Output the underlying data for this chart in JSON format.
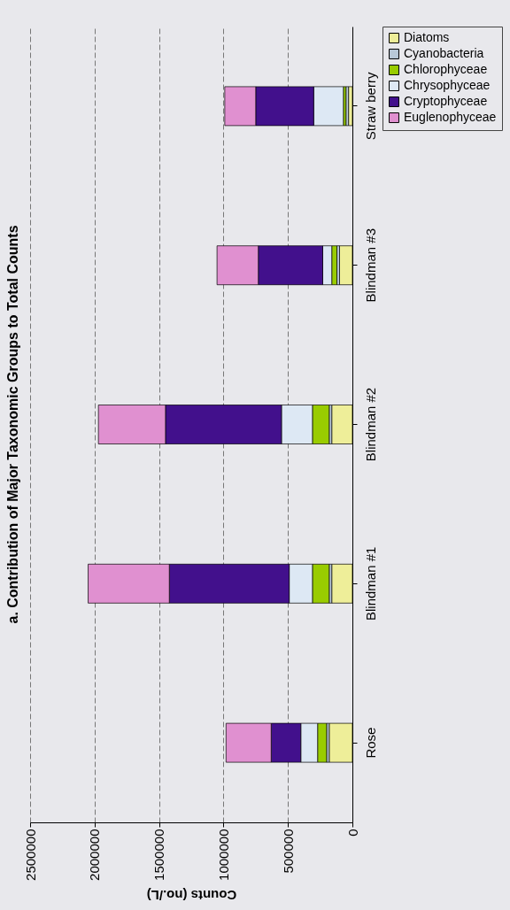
{
  "chart_data": {
    "type": "bar",
    "title": "a. Contribution of Major Taxonomic Groups to Total Counts",
    "xlabel": "Counts (no./L)",
    "orientation": "horizontal",
    "categories": [
      "Straw berry",
      "Blindman #3",
      "Blindman #2",
      "Blindman #1",
      "Rose"
    ],
    "stacked": true,
    "series": [
      {
        "name": "Diatoms",
        "color": "#eeee99",
        "values": [
          30000,
          100000,
          160000,
          160000,
          180000
        ]
      },
      {
        "name": "Cyanobacteria",
        "color": "#b8c8d8",
        "values": [
          20000,
          20000,
          20000,
          20000,
          20000
        ]
      },
      {
        "name": "Chlorophyceae",
        "color": "#99cc00",
        "values": [
          20000,
          40000,
          130000,
          130000,
          70000
        ]
      },
      {
        "name": "Chrysophyceae",
        "color": "#dde8f4",
        "values": [
          230000,
          70000,
          240000,
          180000,
          130000
        ]
      },
      {
        "name": "Cryptophyceae",
        "color": "#42108c",
        "values": [
          450000,
          500000,
          900000,
          930000,
          230000
        ]
      },
      {
        "name": "Euglenophyceae",
        "color": "#e090d0",
        "values": [
          240000,
          320000,
          520000,
          630000,
          350000
        ]
      }
    ],
    "xlim": [
      2500000,
      0
    ],
    "xticks": [
      0,
      500000,
      1000000,
      1500000,
      2000000,
      2500000
    ],
    "grid": "x",
    "legend": "right"
  }
}
